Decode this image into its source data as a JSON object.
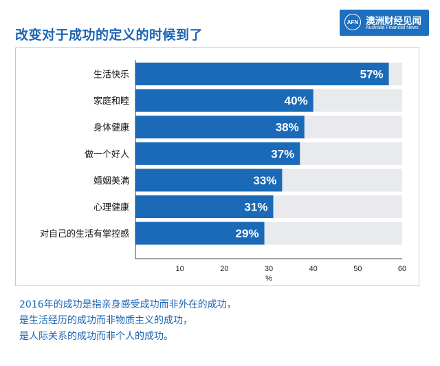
{
  "header": {
    "title": "改变对于成功的定义的时候到了",
    "logo": {
      "badge": "AFN",
      "name": "澳洲财经见闻",
      "subtitle": "Australia Financial News"
    }
  },
  "chart_data": {
    "type": "bar",
    "orientation": "horizontal",
    "categories": [
      "生活快乐",
      "家庭和睦",
      "身体健康",
      "做一个好人",
      "婚姻美满",
      "心理健康",
      "对自己的生活有掌控感"
    ],
    "values": [
      57,
      40,
      38,
      37,
      33,
      31,
      29
    ],
    "value_labels": [
      "57%",
      "40%",
      "38%",
      "37%",
      "33%",
      "31%",
      "29%"
    ],
    "x_ticks": [
      "10",
      "20",
      "30",
      "40",
      "50",
      "60"
    ],
    "xlabel": "%",
    "xlim": [
      0,
      60
    ],
    "bar_color": "#1a6ab8",
    "track_color": "#e8eaed",
    "grid": false,
    "legend": "none"
  },
  "caption": {
    "lines": [
      "2016年的成功是指亲身感受成功而非外在的成功，",
      "是生活经历的成功而非物质主义的成功，",
      "是人际关系的成功而非个人的成功。"
    ]
  }
}
